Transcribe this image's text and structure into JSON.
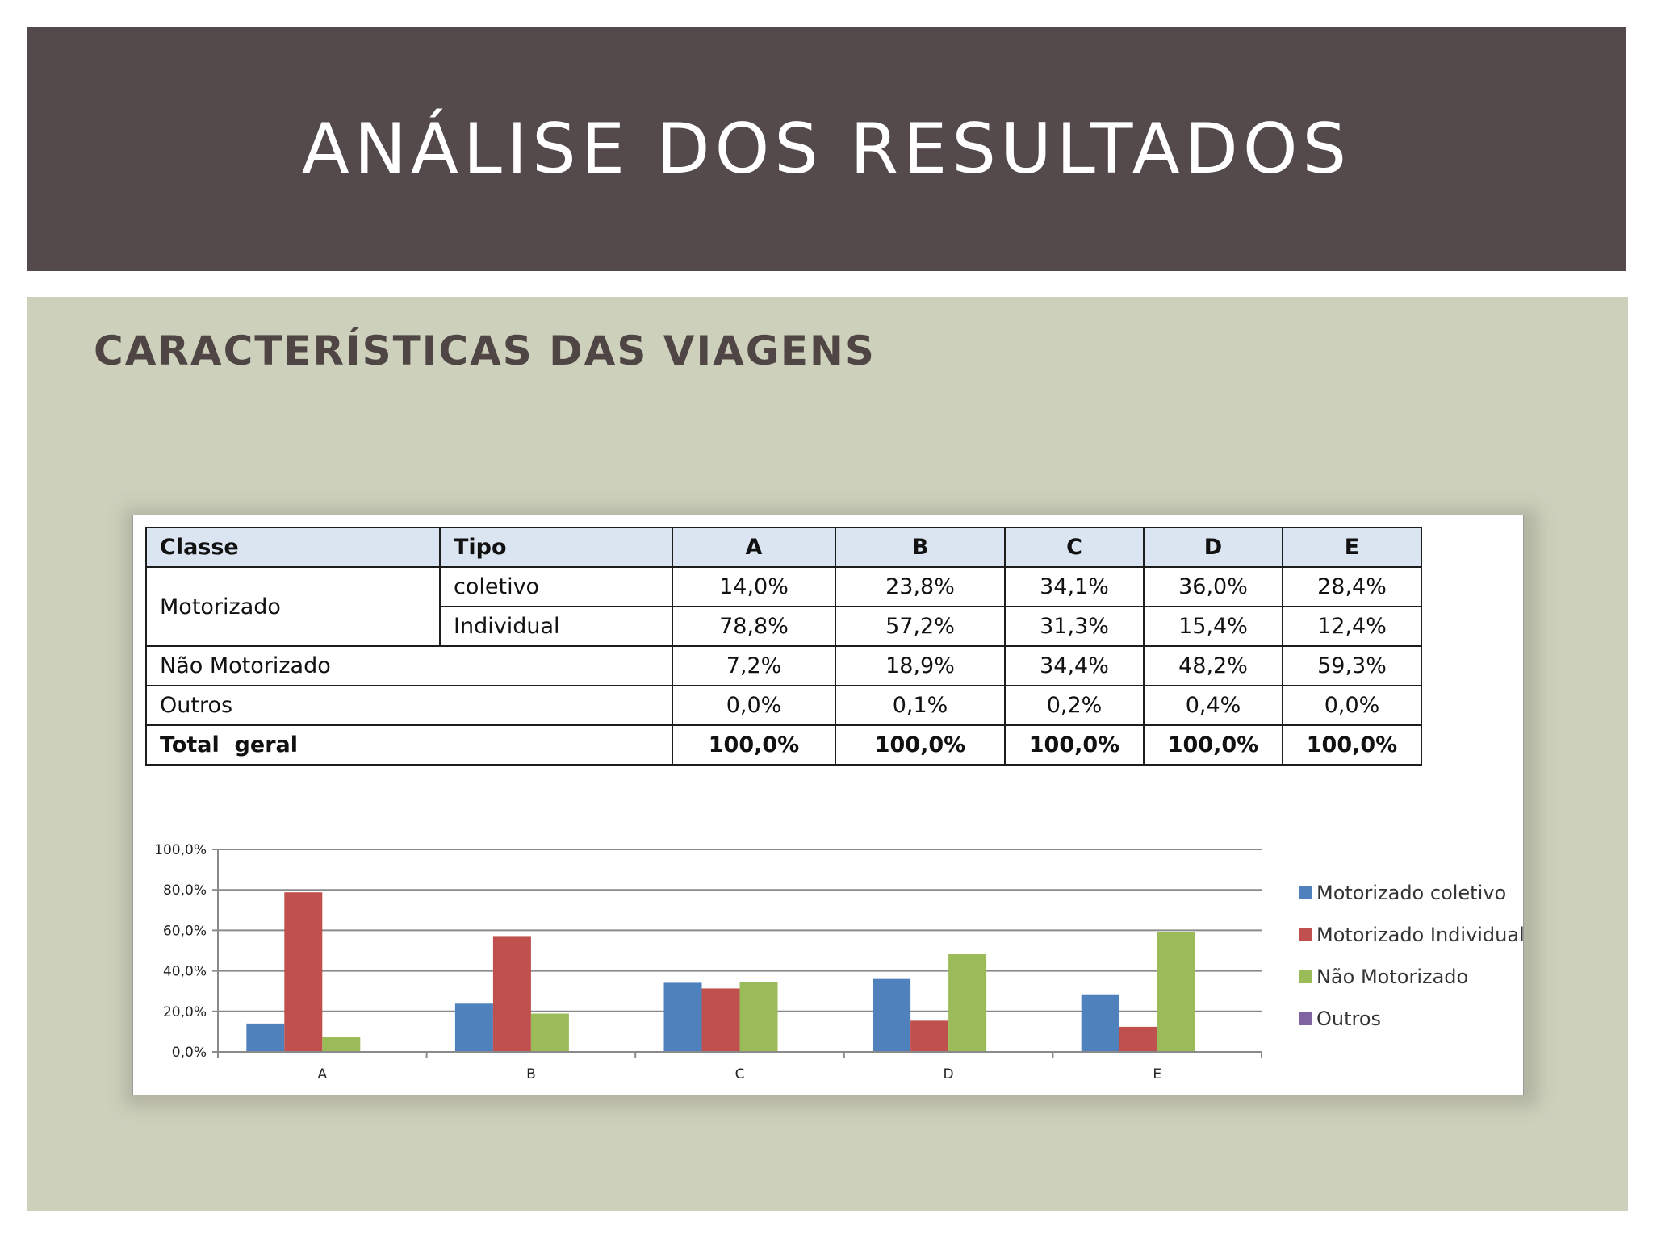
{
  "header": {
    "title": "ANÁLISE DOS RESULTADOS"
  },
  "section": {
    "subtitle": "CARACTERÍSTICAS DAS VIAGENS"
  },
  "table": {
    "columns": [
      "Classe",
      "Tipo",
      "A",
      "B",
      "C",
      "D",
      "E"
    ],
    "rows": [
      {
        "classe": "Motorizado",
        "tipo": "coletivo",
        "values": [
          "14,0%",
          "23,8%",
          "34,1%",
          "36,0%",
          "28,4%"
        ]
      },
      {
        "classe": "Motorizado",
        "tipo": "Individual",
        "values": [
          "78,8%",
          "57,2%",
          "31,3%",
          "15,4%",
          "12,4%"
        ]
      },
      {
        "classe": "Não Motorizado",
        "tipo": "",
        "values": [
          "7,2%",
          "18,9%",
          "34,4%",
          "48,2%",
          "59,3%"
        ]
      },
      {
        "classe": "Outros",
        "tipo": "",
        "values": [
          "0,0%",
          "0,1%",
          "0,2%",
          "0,4%",
          "0,0%"
        ]
      },
      {
        "classe": "Total  geral",
        "tipo": "",
        "values": [
          "100,0%",
          "100,0%",
          "100,0%",
          "100,0%",
          "100,0%"
        ]
      }
    ]
  },
  "chart_data": {
    "type": "bar",
    "categories": [
      "A",
      "B",
      "C",
      "D",
      "E"
    ],
    "series": [
      {
        "name": "Motorizado coletivo",
        "color": "#4f81bd",
        "values": [
          14.0,
          23.8,
          34.1,
          36.0,
          28.4
        ]
      },
      {
        "name": "Motorizado Individual",
        "color": "#c0504d",
        "values": [
          78.8,
          57.2,
          31.3,
          15.4,
          12.4
        ]
      },
      {
        "name": "Não Motorizado",
        "color": "#9bbb59",
        "values": [
          7.2,
          18.9,
          34.4,
          48.2,
          59.3
        ]
      },
      {
        "name": "Outros",
        "color": "#8064a2",
        "values": [
          0.0,
          0.1,
          0.2,
          0.4,
          0.0
        ]
      }
    ],
    "yticks": [
      "0,0%",
      "20,0%",
      "40,0%",
      "60,0%",
      "80,0%",
      "100,0%"
    ],
    "ylim": [
      0,
      100
    ],
    "grid": true,
    "legend": "right",
    "title": "",
    "xlabel": "",
    "ylabel": ""
  }
}
